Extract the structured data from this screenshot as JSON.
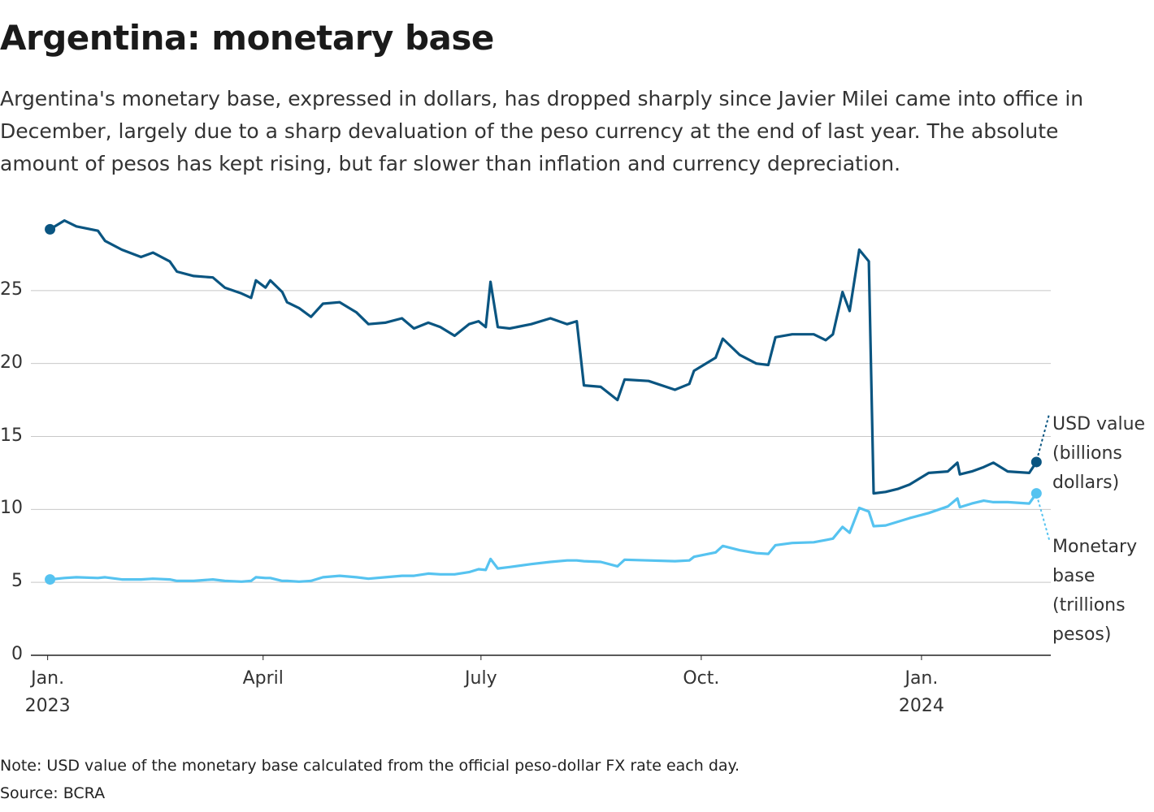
{
  "chart_data": {
    "type": "line",
    "title": "Argentina: monetary base",
    "subtitle": "Argentina's monetary base, expressed in dollars, has dropped sharply since Javier Milei came into office in December, largely due to a sharp devaluation of the peso currency at the end of last year. The absolute amount of pesos has kept rising, but far slower than inflation and currency depreciation.",
    "note": "Note: USD value of the monetary base calculated from the official peso-dollar FX rate each day.",
    "source": "Source: BCRA",
    "x": [
      "2023-01-02",
      "2023-01-08",
      "2023-01-13",
      "2023-01-22",
      "2023-01-25",
      "2023-02-01",
      "2023-02-09",
      "2023-02-14",
      "2023-02-21",
      "2023-02-24",
      "2023-03-03",
      "2023-03-11",
      "2023-03-16",
      "2023-03-23",
      "2023-03-27",
      "2023-03-29",
      "2023-04-02",
      "2023-04-04",
      "2023-04-09",
      "2023-04-11",
      "2023-04-16",
      "2023-04-21",
      "2023-04-26",
      "2023-05-03",
      "2023-05-10",
      "2023-05-15",
      "2023-05-22",
      "2023-05-29",
      "2023-06-03",
      "2023-06-09",
      "2023-06-14",
      "2023-06-20",
      "2023-06-26",
      "2023-06-30",
      "2023-07-03",
      "2023-07-05",
      "2023-07-08",
      "2023-07-13",
      "2023-07-22",
      "2023-07-30",
      "2023-08-06",
      "2023-08-10",
      "2023-08-13",
      "2023-08-20",
      "2023-08-27",
      "2023-08-30",
      "2023-09-09",
      "2023-09-20",
      "2023-09-26",
      "2023-09-28",
      "2023-10-07",
      "2023-10-10",
      "2023-10-17",
      "2023-10-24",
      "2023-10-29",
      "2023-11-01",
      "2023-11-08",
      "2023-11-17",
      "2023-11-22",
      "2023-11-25",
      "2023-11-29",
      "2023-12-02",
      "2023-12-06",
      "2023-12-10",
      "2023-12-12",
      "2023-12-17",
      "2023-12-22",
      "2023-12-27",
      "2024-01-04",
      "2024-01-12",
      "2024-01-16",
      "2024-01-17",
      "2024-01-22",
      "2024-01-27",
      "2024-01-31",
      "2024-02-06",
      "2024-02-15",
      "2024-02-18"
    ],
    "series": [
      {
        "name": "USD value (billions dollars)",
        "color": "#0a5581",
        "values": [
          29.2,
          29.8,
          29.4,
          29.1,
          28.4,
          27.8,
          27.3,
          27.6,
          27.0,
          26.3,
          26.0,
          25.9,
          25.2,
          24.8,
          24.5,
          25.7,
          25.2,
          25.7,
          24.9,
          24.2,
          23.8,
          23.2,
          24.1,
          24.2,
          23.5,
          22.7,
          22.8,
          23.1,
          22.4,
          22.8,
          22.5,
          21.9,
          22.7,
          22.9,
          22.5,
          25.6,
          22.5,
          22.4,
          22.7,
          23.1,
          22.7,
          22.9,
          18.5,
          18.4,
          17.5,
          18.9,
          18.8,
          18.2,
          18.6,
          19.5,
          20.4,
          21.7,
          20.6,
          20.0,
          19.9,
          21.8,
          22.0,
          22.0,
          21.6,
          22.0,
          24.9,
          23.6,
          27.8,
          27.0,
          11.1,
          11.2,
          11.4,
          11.7,
          12.5,
          12.6,
          13.2,
          12.4,
          12.6,
          12.9,
          13.2,
          12.6,
          12.5,
          13.25
        ]
      },
      {
        "name": "Monetary base (trillions pesos)",
        "color": "#56c3f0",
        "values": [
          5.2,
          5.3,
          5.35,
          5.3,
          5.35,
          5.2,
          5.2,
          5.25,
          5.2,
          5.1,
          5.1,
          5.2,
          5.1,
          5.05,
          5.1,
          5.35,
          5.3,
          5.3,
          5.1,
          5.1,
          5.05,
          5.1,
          5.35,
          5.45,
          5.35,
          5.25,
          5.35,
          5.45,
          5.45,
          5.6,
          5.55,
          5.55,
          5.7,
          5.9,
          5.85,
          6.6,
          5.95,
          6.05,
          6.25,
          6.4,
          6.5,
          6.5,
          6.45,
          6.4,
          6.1,
          6.55,
          6.5,
          6.45,
          6.5,
          6.75,
          7.05,
          7.5,
          7.2,
          7.0,
          6.95,
          7.55,
          7.7,
          7.75,
          7.9,
          8.0,
          8.8,
          8.4,
          10.1,
          9.85,
          8.85,
          8.9,
          9.15,
          9.4,
          9.75,
          10.2,
          10.75,
          10.15,
          10.4,
          10.6,
          10.5,
          10.5,
          10.4,
          11.1
        ]
      }
    ],
    "xlim": [
      "2022-12-25",
      "2024-02-24"
    ],
    "xticks": [
      {
        "value": "2023-01-01",
        "label": "Jan.\n2023"
      },
      {
        "value": "2023-04-01",
        "label": "April"
      },
      {
        "value": "2023-07-01",
        "label": "July"
      },
      {
        "value": "2023-10-01",
        "label": "Oct."
      },
      {
        "value": "2024-01-01",
        "label": "Jan.\n2024"
      }
    ],
    "ylim": [
      0,
      30
    ],
    "yticks": [
      0,
      5,
      10,
      15,
      20,
      25
    ],
    "grid": true
  }
}
